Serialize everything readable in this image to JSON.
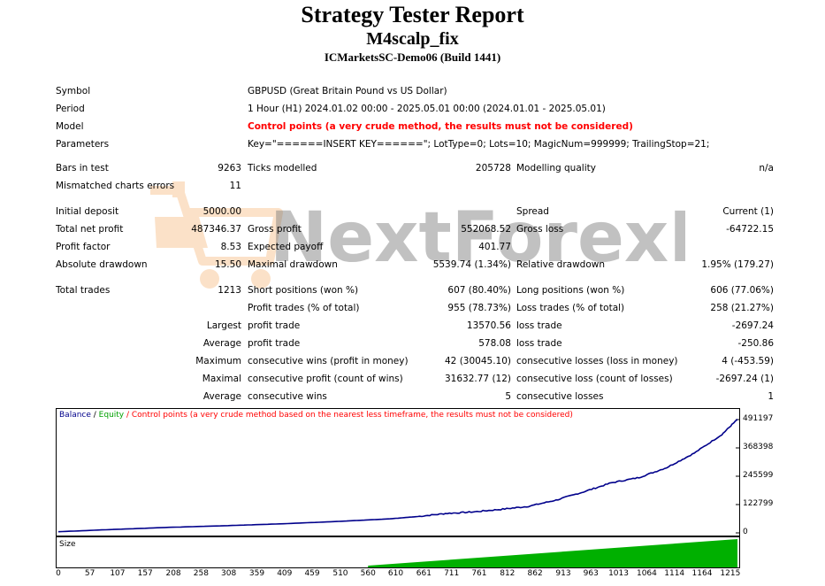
{
  "header": {
    "title": "Strategy Tester Report",
    "subtitle": "M4scalp_fix",
    "server": "ICMarketsSC-Demo06 (Build 1441)"
  },
  "info": {
    "symbol_label": "Symbol",
    "symbol_value": "GBPUSD (Great Britain Pound vs US Dollar)",
    "period_label": "Period",
    "period_value": "1 Hour (H1) 2024.01.02 00:00 - 2025.05.01 00:00 (2024.01.01 - 2025.05.01)",
    "model_label": "Model",
    "model_value": "Control points (a very crude method, the results must not be considered)",
    "params_label": "Parameters",
    "params_value": "Key=\"======INSERT KEY======\"; LotType=0; Lots=10; MagicNum=999999; TrailingStop=21;"
  },
  "stats": {
    "bars_label": "Bars in test",
    "bars_value": "9263",
    "ticks_label": "Ticks modelled",
    "ticks_value": "205728",
    "quality_label": "Modelling quality",
    "quality_value": "n/a",
    "mismatch_label": "Mismatched charts errors",
    "mismatch_value": "11",
    "deposit_label": "Initial deposit",
    "deposit_value": "5000.00",
    "spread_label": "Spread",
    "spread_value": "Current (1)",
    "net_label": "Total net profit",
    "net_value": "487346.37",
    "gross_profit_label": "Gross profit",
    "gross_profit_value": "552068.52",
    "gross_loss_label": "Gross loss",
    "gross_loss_value": "-64722.15",
    "pf_label": "Profit factor",
    "pf_value": "8.53",
    "ep_label": "Expected payoff",
    "ep_value": "401.77",
    "abs_dd_label": "Absolute drawdown",
    "abs_dd_value": "15.50",
    "max_dd_label": "Maximal drawdown",
    "max_dd_value": "5539.74 (1.34%)",
    "rel_dd_label": "Relative drawdown",
    "rel_dd_value": "1.95% (179.27)",
    "trades_label": "Total trades",
    "trades_value": "1213",
    "short_label": "Short positions (won %)",
    "short_value": "607 (80.40%)",
    "long_label": "Long positions (won %)",
    "long_value": "606 (77.06%)",
    "pt_label": "Profit trades (% of total)",
    "pt_value": "955 (78.73%)",
    "lt_label": "Loss trades (% of total)",
    "lt_value": "258 (21.27%)",
    "largest": "Largest",
    "average": "Average",
    "maximum": "Maximum",
    "maximal": "Maximal",
    "profit_trade_label": "profit trade",
    "loss_trade_label": "loss trade",
    "largest_profit": "13570.56",
    "largest_loss": "-2697.24",
    "avg_profit": "578.08",
    "avg_loss": "-250.86",
    "cw_money_label": "consecutive wins (profit in money)",
    "cw_money_value": "42 (30045.10)",
    "cl_money_label": "consecutive losses (loss in money)",
    "cl_money_value": "4 (-453.59)",
    "cp_count_label": "consecutive profit (count of wins)",
    "cp_count_value": "31632.77 (12)",
    "cl_count_label": "consecutive loss (count of losses)",
    "cl_count_value": "-2697.24 (1)",
    "cw_label": "consecutive wins",
    "cw_value": "5",
    "cl_label": "consecutive losses",
    "cl_value": "1"
  },
  "watermark": {
    "text": "NextForexEA"
  },
  "chart_data": {
    "type": "line",
    "legend": {
      "balance": "Balance",
      "sep1": " / ",
      "equity": "Equity",
      "rest": " / Control points (a very crude method based on the nearest less timeframe, the results must not be considered)"
    },
    "y_ticks": [
      "491197",
      "368398",
      "245599",
      "122799",
      "0"
    ],
    "ylim": [
      0,
      491197
    ],
    "x_ticks": [
      "0",
      "57",
      "107",
      "157",
      "208",
      "258",
      "308",
      "359",
      "409",
      "459",
      "510",
      "560",
      "610",
      "661",
      "711",
      "761",
      "812",
      "862",
      "913",
      "963",
      "1013",
      "1064",
      "1114",
      "1164",
      "1215"
    ],
    "xlim": [
      0,
      1228
    ],
    "series": [
      {
        "name": "Balance",
        "color": "#00008b",
        "x": [
          0,
          100,
          200,
          300,
          400,
          500,
          550,
          600,
          650,
          700,
          750,
          800,
          850,
          900,
          950,
          1000,
          1050,
          1100,
          1150,
          1200,
          1228
        ],
        "y": [
          5000,
          15000,
          24000,
          31000,
          39000,
          49000,
          55000,
          61000,
          71000,
          84000,
          91000,
          102000,
          115000,
          142000,
          178000,
          217000,
          240000,
          283000,
          346000,
          427000,
          492000
        ]
      }
    ],
    "size_label": "Size",
    "size_color": "#00b000"
  }
}
